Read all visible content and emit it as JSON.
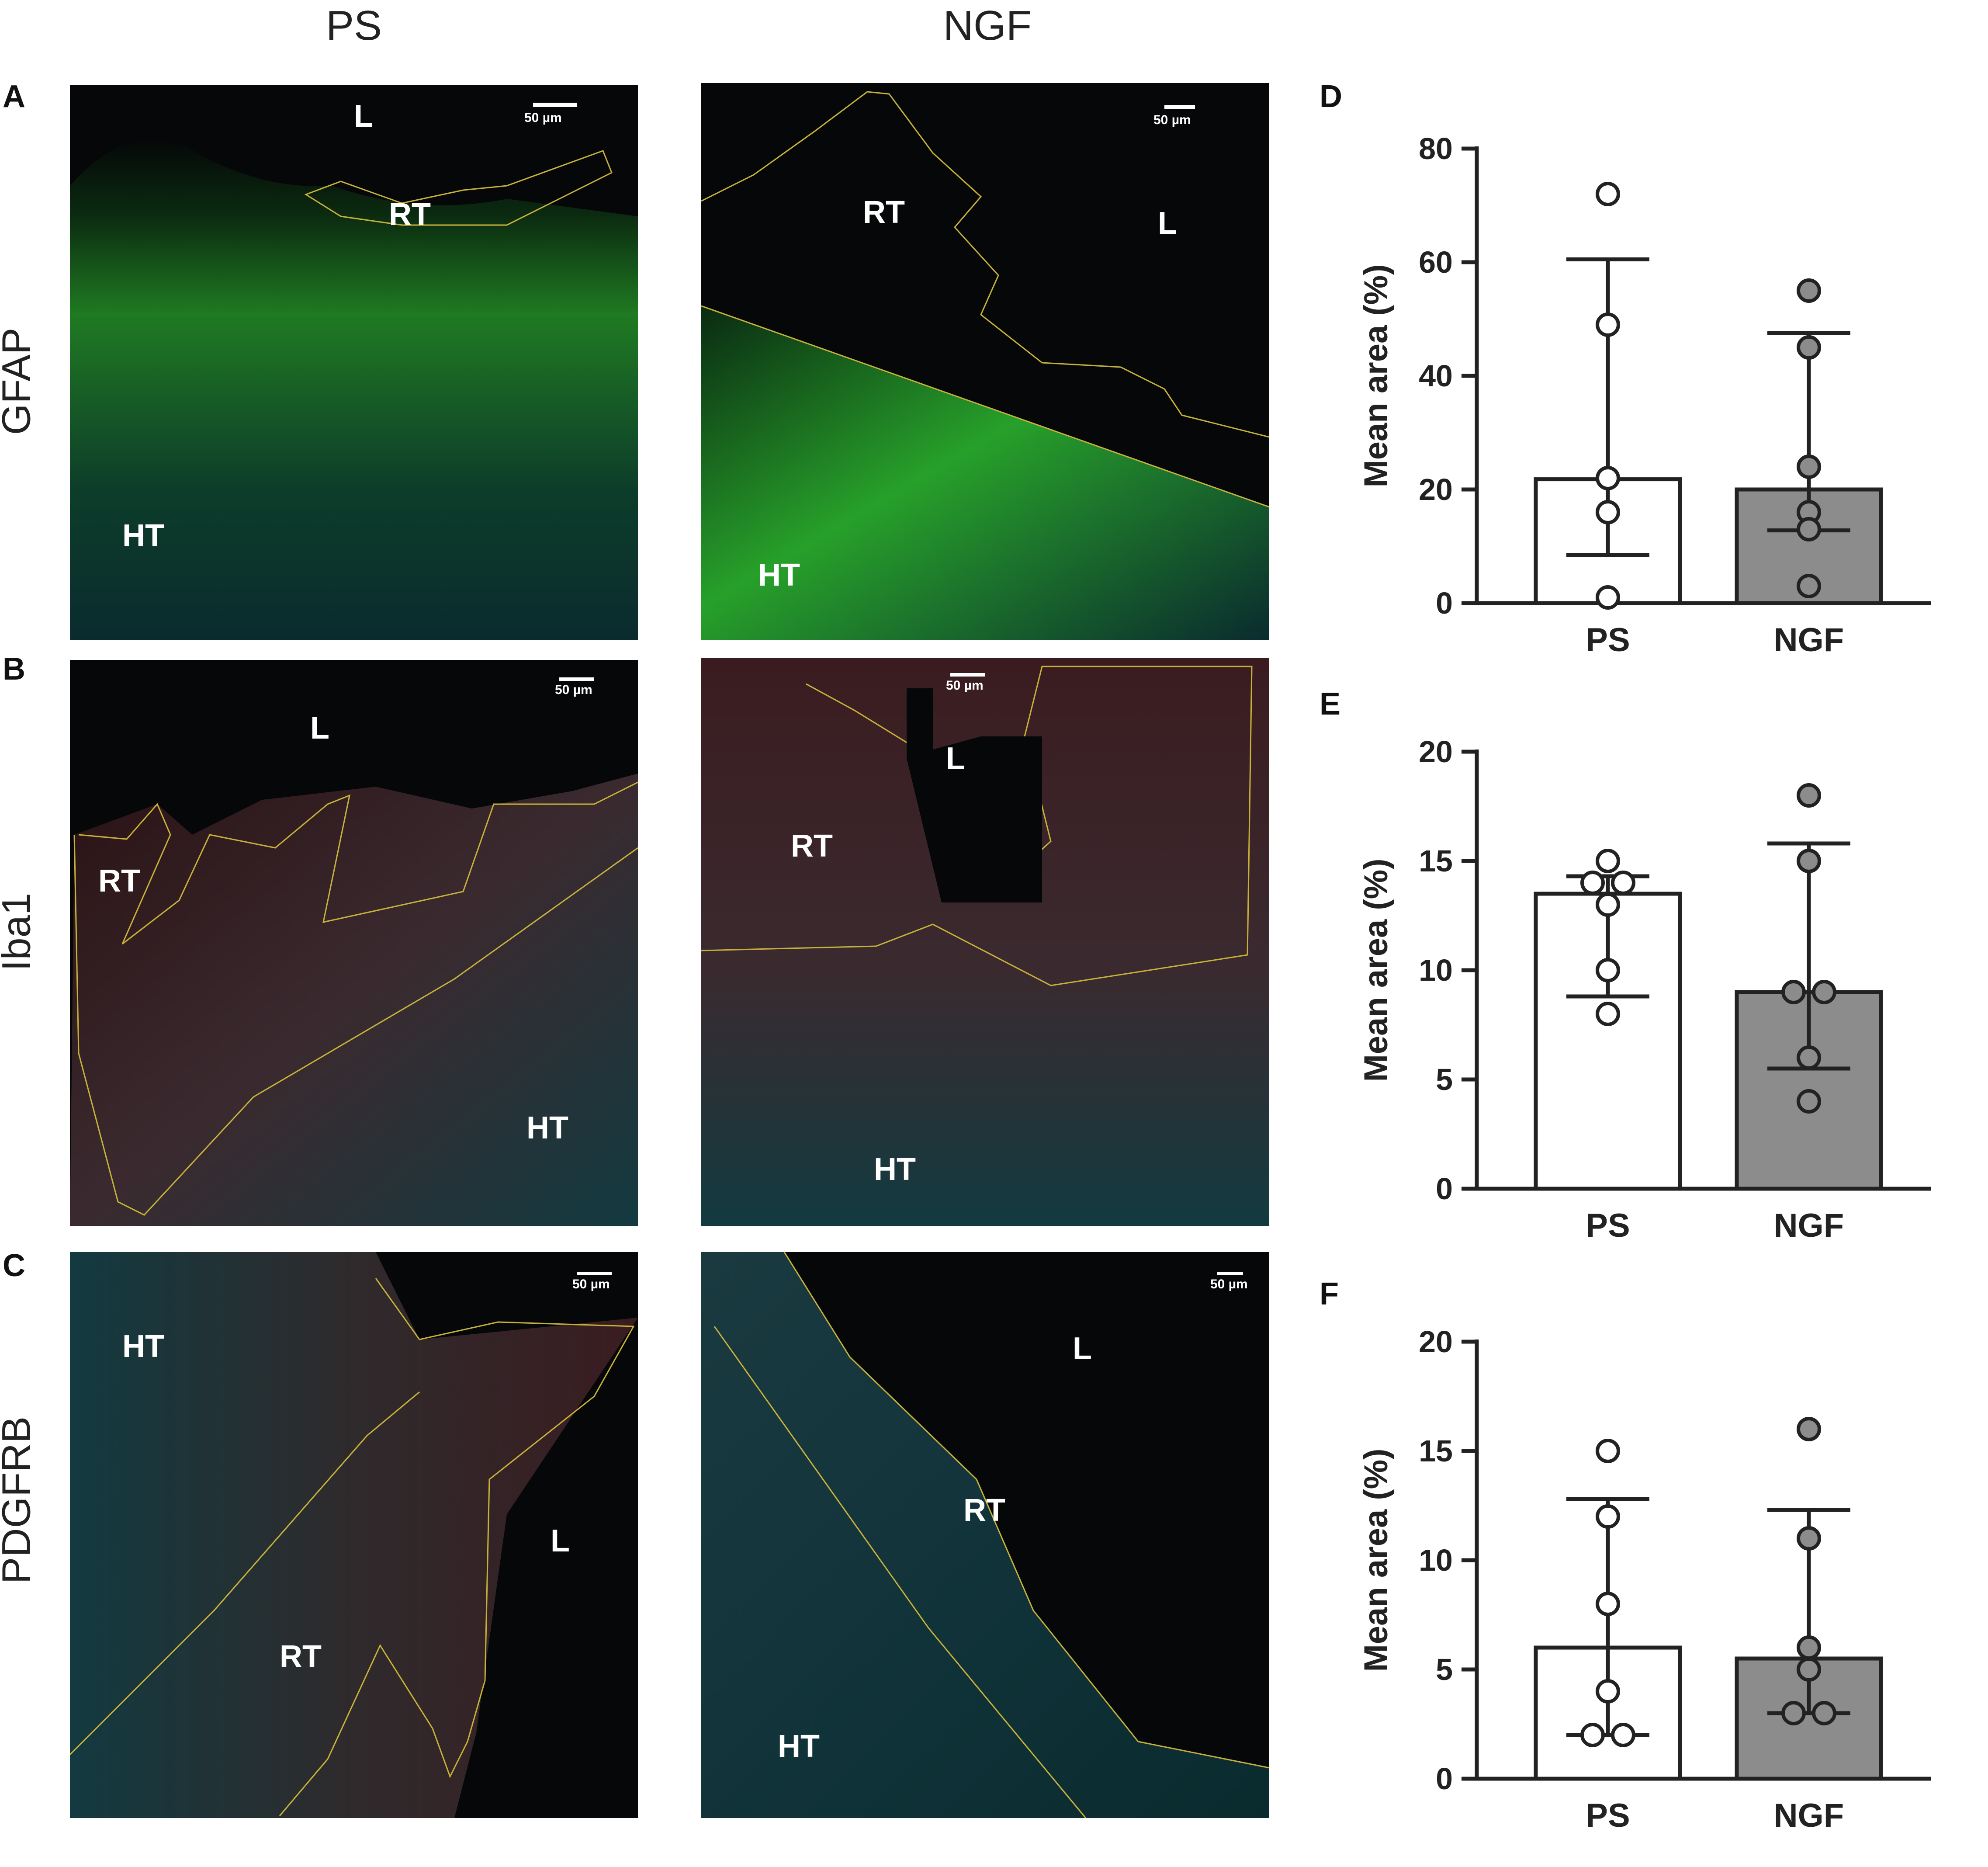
{
  "column_headers": [
    "PS",
    "NGF"
  ],
  "row_headers": [
    "GFAP",
    "Iba1",
    "PDGFRB"
  ],
  "panel_letters": {
    "A": "A",
    "B": "B",
    "C": "C",
    "D": "D",
    "E": "E",
    "F": "F"
  },
  "image_panels": {
    "A_PS": {
      "scale": "50 µm",
      "regions": [
        "L",
        "RT",
        "HT"
      ]
    },
    "A_NGF": {
      "scale": "50 µm",
      "regions": [
        "RT",
        "L",
        "HT"
      ]
    },
    "B_PS": {
      "scale": "50 µm",
      "regions": [
        "L",
        "RT",
        "HT"
      ]
    },
    "B_NGF": {
      "scale": "50 µm",
      "regions": [
        "L",
        "RT",
        "HT"
      ]
    },
    "C_PS": {
      "scale": "50 µm",
      "regions": [
        "HT",
        "L",
        "RT"
      ]
    },
    "C_NGF": {
      "scale": "50 µm",
      "regions": [
        "L",
        "RT",
        "HT"
      ]
    }
  },
  "colors": {
    "ps_bar": "#ffffff",
    "ngf_bar": "#8c8c8c",
    "gfap_stain": "#39d43a",
    "iba1_stain": "#e8262a",
    "pdgfrb_stain": "#e8262a",
    "nuclei": "#33d6e0",
    "roi_outline": "#c9b23a"
  },
  "chart_data": [
    {
      "type": "bar",
      "panel": "D",
      "categories": [
        "PS",
        "NGF"
      ],
      "values": [
        21.8,
        20.0
      ],
      "error_low": [
        8.5,
        12.8
      ],
      "error_high": [
        60.5,
        47.5
      ],
      "points": [
        [
          72,
          49,
          22,
          16,
          1
        ],
        [
          55,
          45,
          24,
          16,
          13,
          3
        ]
      ],
      "ylabel": "Mean area (%)",
      "ylim": [
        0,
        80
      ],
      "yticks": [
        0,
        20,
        40,
        60,
        80
      ]
    },
    {
      "type": "bar",
      "panel": "E",
      "categories": [
        "PS",
        "NGF"
      ],
      "values": [
        13.5,
        9.0
      ],
      "error_low": [
        8.8,
        5.5
      ],
      "error_high": [
        14.3,
        15.8
      ],
      "points": [
        [
          15,
          14,
          14,
          13,
          10,
          8
        ],
        [
          18,
          15,
          9,
          9,
          6,
          4
        ]
      ],
      "ylabel": "Mean area (%)",
      "ylim": [
        0,
        20
      ],
      "yticks": [
        0,
        5,
        10,
        15,
        20
      ]
    },
    {
      "type": "bar",
      "panel": "F",
      "categories": [
        "PS",
        "NGF"
      ],
      "values": [
        6.0,
        5.5
      ],
      "error_low": [
        2.0,
        3.0
      ],
      "error_high": [
        12.8,
        12.3
      ],
      "points": [
        [
          15,
          12,
          8,
          4,
          2,
          2
        ],
        [
          16,
          11,
          6,
          5,
          3,
          3
        ]
      ],
      "ylabel": "Mean area (%)",
      "ylim": [
        0,
        20
      ],
      "yticks": [
        0,
        5,
        10,
        15,
        20
      ]
    }
  ]
}
